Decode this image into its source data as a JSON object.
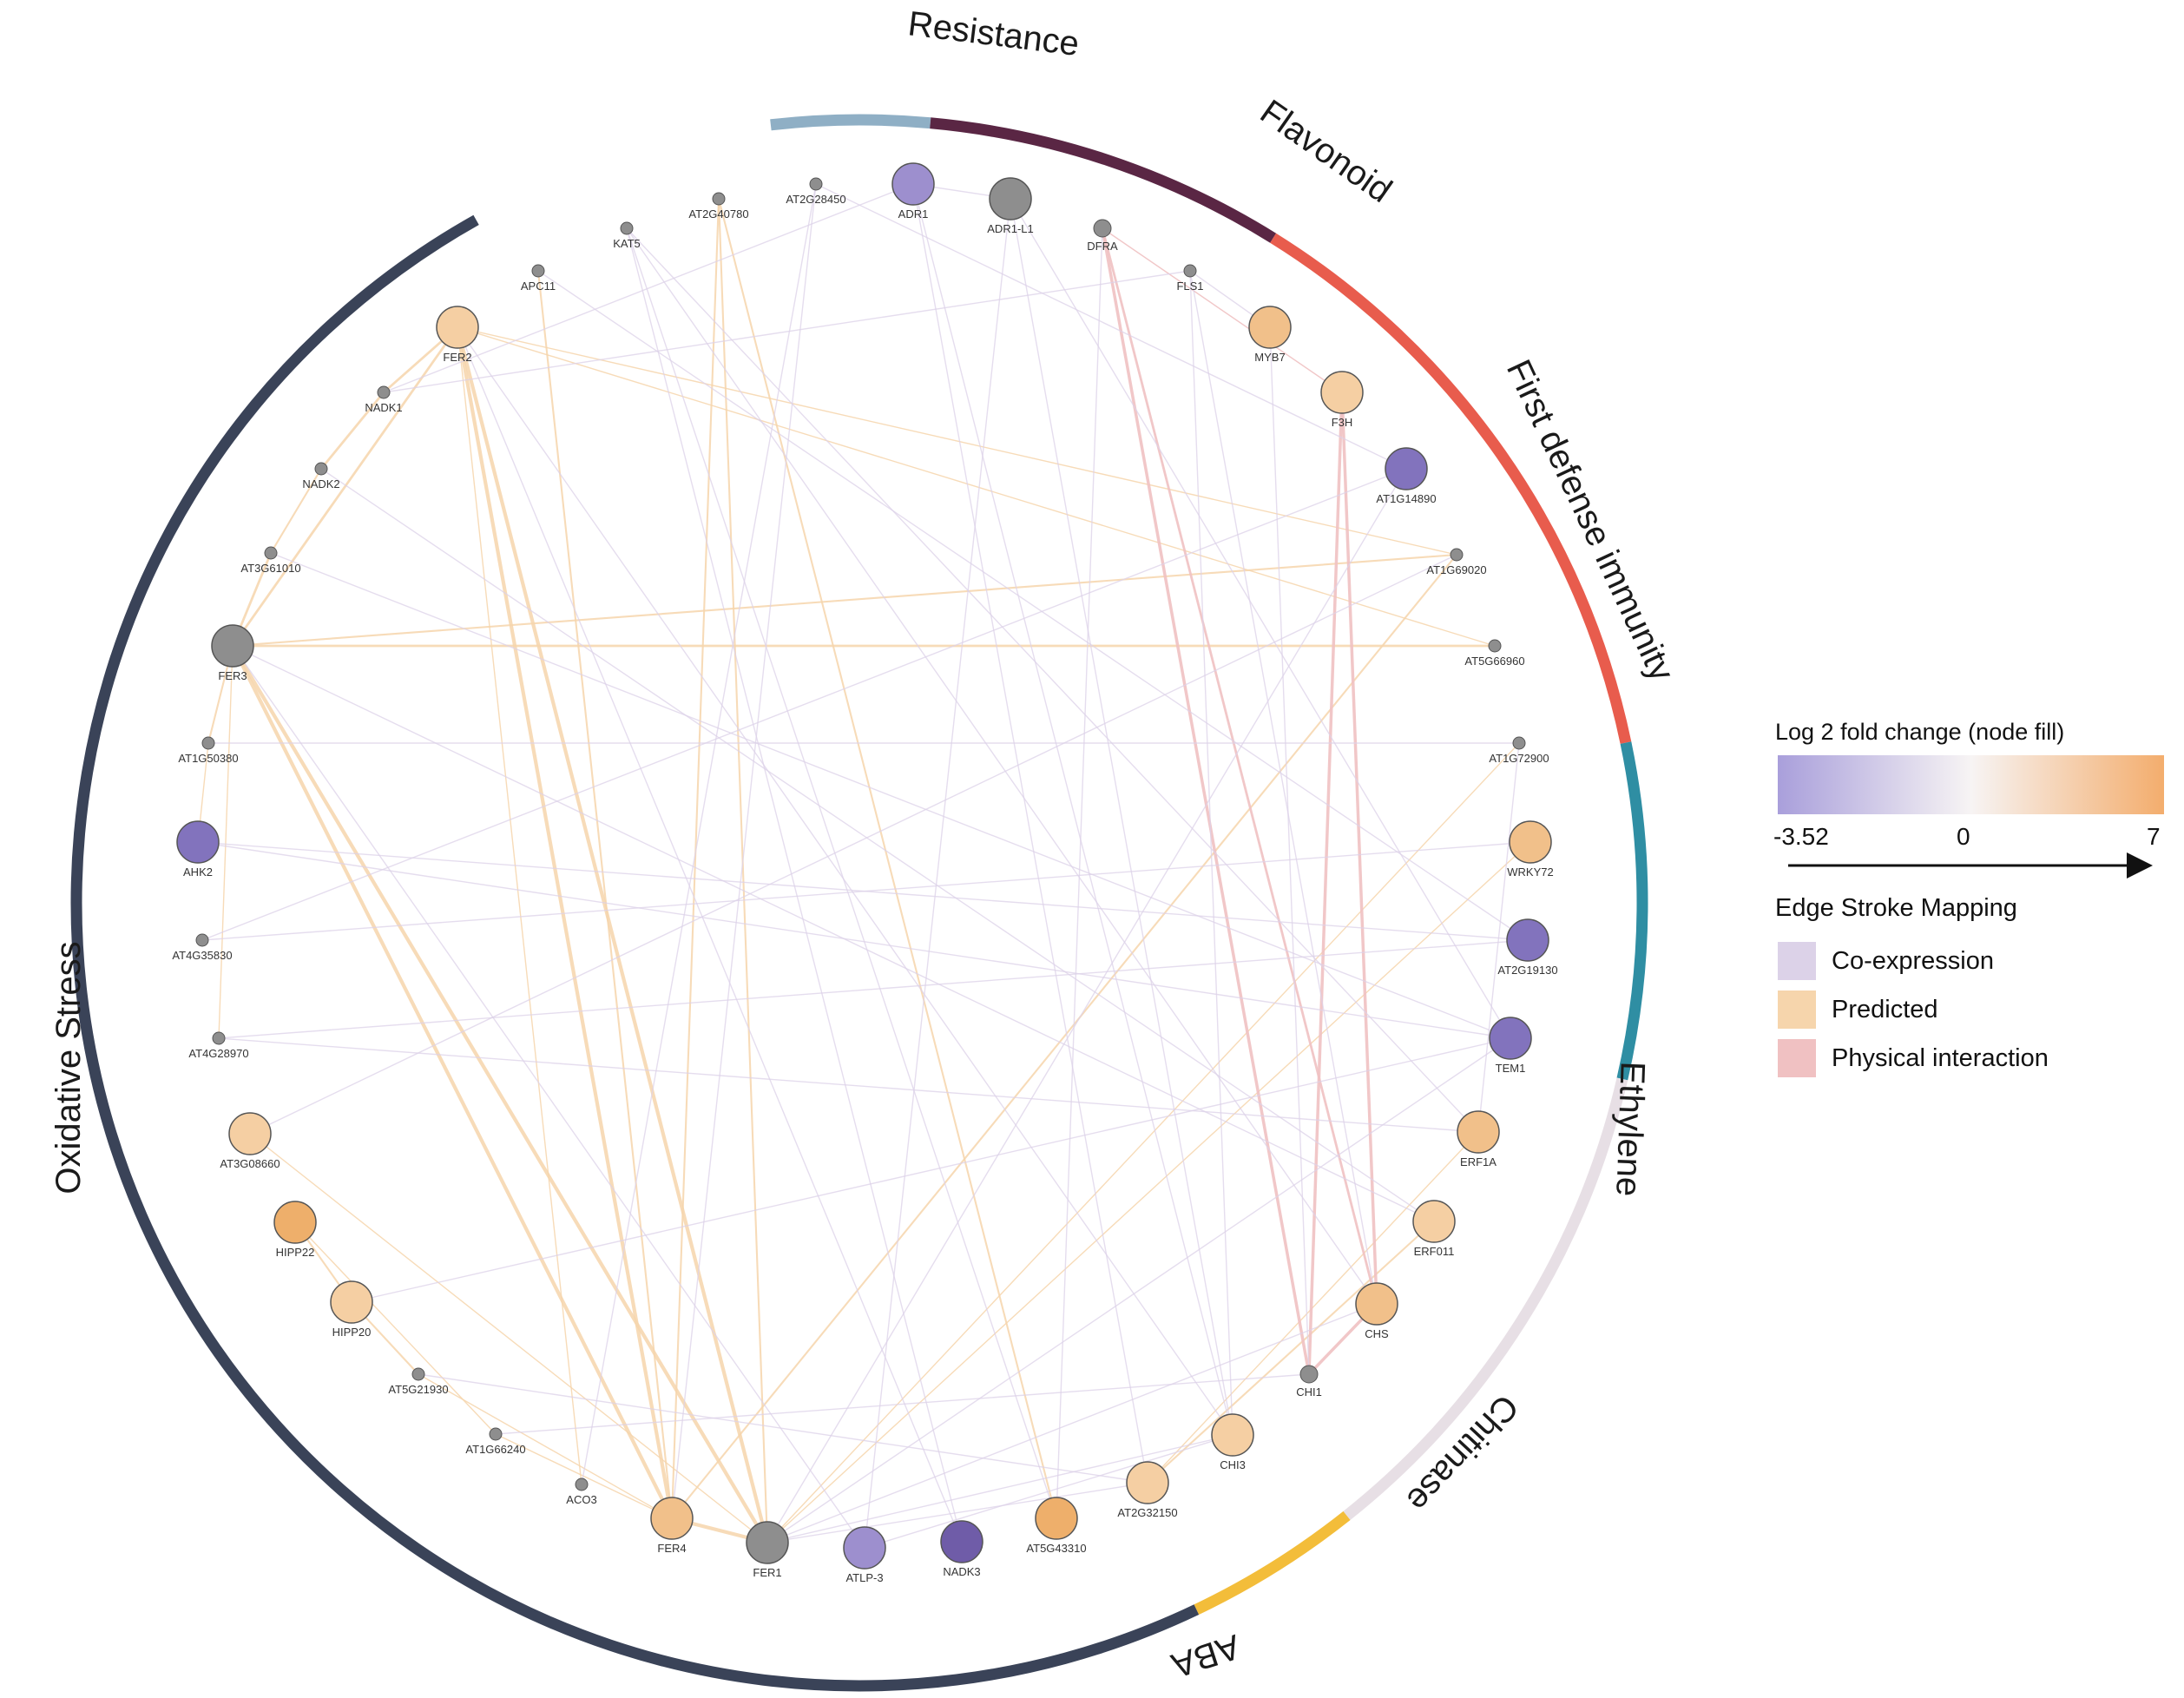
{
  "colors": {
    "background": "#ffffff",
    "node_stroke": "#555555",
    "neutral_node": "#8e8e8e",
    "gradient_low": "#a99fdb",
    "gradient_mid": "#f7f4f4",
    "gradient_high": "#f3ad6d",
    "node_purple_light": "#9d8fce",
    "node_purple": "#8273bd",
    "node_purple_dark": "#6f5ca8",
    "node_peach": "#f5cfa3",
    "node_peach_mid": "#f1c08a",
    "node_orange": "#eeaf6b"
  },
  "groups": [
    {
      "name": "Resistance",
      "color": "#8fafc5"
    },
    {
      "name": "Flavonoid",
      "color": "#5a2644"
    },
    {
      "name": "First defense immunity",
      "color": "#e85c4d"
    },
    {
      "name": "Ethylene",
      "color": "#2f8ea3"
    },
    {
      "name": "Chitinase",
      "color": "#e7dfe5"
    },
    {
      "name": "ABA",
      "color": "#f3bd3a"
    },
    {
      "name": "Oxidative Stress",
      "color": "#3a4358"
    }
  ],
  "nodes": [
    {
      "id": "ADR1",
      "fill": "purple_light",
      "size": "large"
    },
    {
      "id": "ADR1-L1",
      "fill": "neutral",
      "size": "large"
    },
    {
      "id": "DFRA",
      "fill": "neutral",
      "size": "small"
    },
    {
      "id": "FLS1",
      "fill": "neutral",
      "size": "tiny"
    },
    {
      "id": "MYB7",
      "fill": "peach_mid",
      "size": "large"
    },
    {
      "id": "F3H",
      "fill": "peach",
      "size": "large"
    },
    {
      "id": "AT1G14890",
      "fill": "purple",
      "size": "large"
    },
    {
      "id": "AT1G69020",
      "fill": "neutral",
      "size": "tiny"
    },
    {
      "id": "AT5G66960",
      "fill": "neutral",
      "size": "tiny"
    },
    {
      "id": "AT1G72900",
      "fill": "neutral",
      "size": "tiny"
    },
    {
      "id": "WRKY72",
      "fill": "peach_mid",
      "size": "large"
    },
    {
      "id": "AT2G19130",
      "fill": "purple",
      "size": "large"
    },
    {
      "id": "TEM1",
      "fill": "purple",
      "size": "large"
    },
    {
      "id": "ERF1A",
      "fill": "peach_mid",
      "size": "large"
    },
    {
      "id": "ERF011",
      "fill": "peach",
      "size": "large"
    },
    {
      "id": "CHS",
      "fill": "peach_mid",
      "size": "large"
    },
    {
      "id": "CHI1",
      "fill": "neutral",
      "size": "small"
    },
    {
      "id": "CHI3",
      "fill": "peach",
      "size": "large"
    },
    {
      "id": "AT2G32150",
      "fill": "peach",
      "size": "large"
    },
    {
      "id": "AT5G43310",
      "fill": "orange",
      "size": "large"
    },
    {
      "id": "NADK3",
      "fill": "purple_dark",
      "size": "large"
    },
    {
      "id": "ATLP-3",
      "fill": "purple_light",
      "size": "large"
    },
    {
      "id": "FER1",
      "fill": "neutral",
      "size": "large"
    },
    {
      "id": "FER4",
      "fill": "peach_mid",
      "size": "large"
    },
    {
      "id": "ACO3",
      "fill": "neutral",
      "size": "tiny"
    },
    {
      "id": "AT1G66240",
      "fill": "neutral",
      "size": "tiny"
    },
    {
      "id": "AT5G21930",
      "fill": "neutral",
      "size": "tiny"
    },
    {
      "id": "HIPP20",
      "fill": "peach",
      "size": "large"
    },
    {
      "id": "HIPP22",
      "fill": "orange",
      "size": "large"
    },
    {
      "id": "AT3G08660",
      "fill": "peach",
      "size": "large"
    },
    {
      "id": "AT4G28970",
      "fill": "neutral",
      "size": "tiny"
    },
    {
      "id": "AT4G35830",
      "fill": "neutral",
      "size": "tiny"
    },
    {
      "id": "AHK2",
      "fill": "purple",
      "size": "large"
    },
    {
      "id": "AT1G50380",
      "fill": "neutral",
      "size": "tiny"
    },
    {
      "id": "FER3",
      "fill": "neutral",
      "size": "large"
    },
    {
      "id": "AT3G61010",
      "fill": "neutral",
      "size": "tiny"
    },
    {
      "id": "NADK2",
      "fill": "neutral",
      "size": "tiny"
    },
    {
      "id": "NADK1",
      "fill": "neutral",
      "size": "tiny"
    },
    {
      "id": "FER2",
      "fill": "peach",
      "size": "large"
    },
    {
      "id": "APC11",
      "fill": "neutral",
      "size": "tiny"
    },
    {
      "id": "KAT5",
      "fill": "neutral",
      "size": "tiny"
    },
    {
      "id": "AT2G40780",
      "fill": "neutral",
      "size": "tiny"
    },
    {
      "id": "AT2G28450",
      "fill": "neutral",
      "size": "tiny"
    }
  ],
  "edges": [
    [
      "FER2",
      "FER4",
      "predicted",
      3
    ],
    [
      "FER2",
      "FER1",
      "predicted",
      3
    ],
    [
      "FER3",
      "FER4",
      "predicted",
      3
    ],
    [
      "FER3",
      "FER1",
      "predicted",
      3
    ],
    [
      "FER2",
      "FER3",
      "predicted",
      2
    ],
    [
      "FER4",
      "FER1",
      "predicted",
      3
    ],
    [
      "FER3",
      "AT5G66960",
      "predicted",
      2
    ],
    [
      "FER3",
      "AT1G69020",
      "predicted",
      1.5
    ],
    [
      "FER2",
      "NADK1",
      "predicted",
      2
    ],
    [
      "NADK1",
      "NADK2",
      "predicted",
      2
    ],
    [
      "NADK2",
      "AT3G61010",
      "predicted",
      1.5
    ],
    [
      "AT3G61010",
      "FER3",
      "predicted",
      2
    ],
    [
      "FER3",
      "AT1G50380",
      "predicted",
      1.5
    ],
    [
      "AT1G50380",
      "AHK2",
      "predicted",
      1
    ],
    [
      "HIPP22",
      "HIPP20",
      "predicted",
      1.5
    ],
    [
      "HIPP20",
      "AT5G21930",
      "predicted",
      1.5
    ],
    [
      "HIPP22",
      "AT1G66240",
      "predicted",
      1
    ],
    [
      "AT1G66240",
      "FER4",
      "predicted",
      1
    ],
    [
      "AT5G21930",
      "FER4",
      "predicted",
      1
    ],
    [
      "AT2G40780",
      "FER1",
      "predicted",
      1.5
    ],
    [
      "AT2G40780",
      "FER4",
      "predicted",
      1.5
    ],
    [
      "APC11",
      "FER4",
      "predicted",
      1.5
    ],
    [
      "AT5G43310",
      "AT2G40780",
      "predicted",
      1.5
    ],
    [
      "FER2",
      "AT1G69020",
      "predicted",
      1
    ],
    [
      "AT1G69020",
      "FER4",
      "predicted",
      1.5
    ],
    [
      "ERF011",
      "AT2G32150",
      "predicted",
      1.5
    ],
    [
      "AT1G72900",
      "FER1",
      "predicted",
      1
    ],
    [
      "WRKY72",
      "FER1",
      "predicted",
      1
    ],
    [
      "ERF1A",
      "AT2G32150",
      "predicted",
      1
    ],
    [
      "AT5G66960",
      "FER2",
      "predicted",
      1
    ],
    [
      "FER3",
      "AT4G28970",
      "predicted",
      1
    ],
    [
      "AT3G08660",
      "FER1",
      "predicted",
      1
    ],
    [
      "ACO3",
      "FER2",
      "predicted",
      1
    ],
    [
      "DFRA",
      "CHI1",
      "physical",
      2.5
    ],
    [
      "DFRA",
      "CHS",
      "physical",
      2
    ],
    [
      "F3H",
      "CHS",
      "physical",
      2.5
    ],
    [
      "F3H",
      "CHI1",
      "physical",
      2.5
    ],
    [
      "CHS",
      "CHI1",
      "physical",
      2.5
    ],
    [
      "DFRA",
      "F3H",
      "physical",
      1
    ],
    [
      "ADR1",
      "ADR1-L1",
      "coexpression",
      1
    ],
    [
      "ADR1",
      "CHI3",
      "coexpression",
      1
    ],
    [
      "ADR1",
      "AT2G32150",
      "coexpression",
      1
    ],
    [
      "ADR1-L1",
      "ATLP-3",
      "coexpression",
      1
    ],
    [
      "ADR1-L1",
      "TEM1",
      "coexpression",
      1
    ],
    [
      "FLS1",
      "CHI3",
      "coexpression",
      1
    ],
    [
      "FLS1",
      "MYB7",
      "coexpression",
      1
    ],
    [
      "FLS1",
      "CHS",
      "coexpression",
      1
    ],
    [
      "MYB7",
      "CHI1",
      "coexpression",
      1
    ],
    [
      "KAT5",
      "NADK3",
      "coexpression",
      1
    ],
    [
      "KAT5",
      "CHS",
      "coexpression",
      1
    ],
    [
      "KAT5",
      "ERF1A",
      "coexpression",
      1
    ],
    [
      "AT2G28450",
      "AT1G14890",
      "coexpression",
      1
    ],
    [
      "AT2G28450",
      "FER4",
      "coexpression",
      1
    ],
    [
      "ADR1",
      "NADK1",
      "coexpression",
      1
    ],
    [
      "AT1G14890",
      "FER1",
      "coexpression",
      1
    ],
    [
      "AT1G14890",
      "AT4G35830",
      "coexpression",
      1
    ],
    [
      "AT2G19130",
      "AHK2",
      "coexpression",
      1
    ],
    [
      "AT2G19130",
      "AT4G28970",
      "coexpression",
      1
    ],
    [
      "TEM1",
      "FER1",
      "coexpression",
      1
    ],
    [
      "TEM1",
      "AT3G61010",
      "coexpression",
      1
    ],
    [
      "ERF011",
      "NADK2",
      "coexpression",
      1
    ],
    [
      "ERF011",
      "FER3",
      "coexpression",
      1
    ],
    [
      "CHS",
      "FER1",
      "coexpression",
      1
    ],
    [
      "CHI3",
      "ATLP-3",
      "coexpression",
      1
    ],
    [
      "CHI3",
      "FER1",
      "coexpression",
      1
    ],
    [
      "AT2G32150",
      "FER1",
      "coexpression",
      1
    ],
    [
      "NADK3",
      "FER2",
      "coexpression",
      1
    ],
    [
      "ATLP-3",
      "FER3",
      "coexpression",
      1
    ],
    [
      "AT5G43310",
      "KAT5",
      "coexpression",
      1
    ],
    [
      "AHK2",
      "TEM1",
      "coexpression",
      1
    ],
    [
      "AT4G35830",
      "WRKY72",
      "coexpression",
      1
    ],
    [
      "AT3G08660",
      "AT1G69020",
      "coexpression",
      1
    ],
    [
      "HIPP20",
      "TEM1",
      "coexpression",
      1
    ],
    [
      "ACO3",
      "AT2G28450",
      "coexpression",
      1
    ],
    [
      "AT1G66240",
      "CHI1",
      "coexpression",
      1
    ],
    [
      "APC11",
      "AT2G19130",
      "coexpression",
      1
    ],
    [
      "FER2",
      "CHI3",
      "coexpression",
      1
    ],
    [
      "NADK1",
      "FLS1",
      "coexpression",
      1
    ],
    [
      "AT1G50380",
      "AT1G72900",
      "coexpression",
      1
    ],
    [
      "AT4G28970",
      "ERF1A",
      "coexpression",
      1
    ],
    [
      "AT5G21930",
      "AT2G32150",
      "coexpression",
      1
    ],
    [
      "ADR1-L1",
      "CHI3",
      "coexpression",
      1
    ],
    [
      "DFRA",
      "AT5G43310",
      "coexpression",
      1
    ],
    [
      "AT1G72900",
      "ERF1A",
      "coexpression",
      1
    ]
  ],
  "legend": {
    "title": "Log 2 fold change (node fill)",
    "scale_min": "-3.52",
    "scale_mid": "0",
    "scale_max": "7",
    "edge_title": "Edge Stroke Mapping",
    "edge_types": [
      {
        "label": "Co-expression",
        "color": "#dcd2e8",
        "key": "coexpression"
      },
      {
        "label": "Predicted",
        "color": "#f6d5ac",
        "key": "predicted"
      },
      {
        "label": "Physical interaction",
        "color": "#f0c1c2",
        "key": "physical"
      }
    ]
  }
}
